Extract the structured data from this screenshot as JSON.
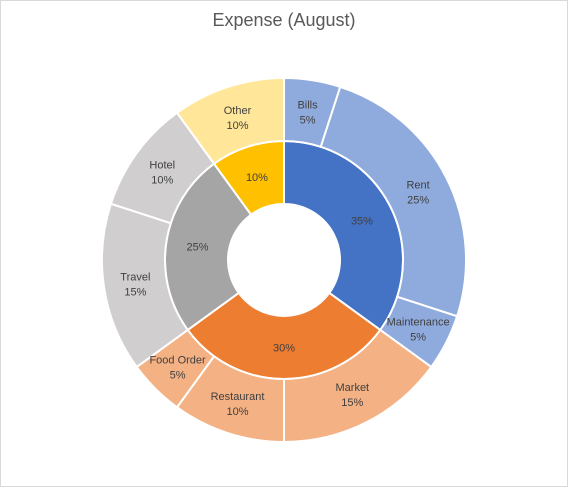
{
  "chart_data": {
    "type": "pie",
    "subtype": "nested-doughnut",
    "title": "Expense (August)",
    "inner_ring": [
      {
        "value": 35,
        "label": "35%",
        "color": "#4472c4"
      },
      {
        "value": 30,
        "label": "30%",
        "color": "#ed7d31"
      },
      {
        "value": 25,
        "label": "25%",
        "color": "#a5a5a5"
      },
      {
        "value": 10,
        "label": "10%",
        "color": "#ffc000"
      }
    ],
    "outer_ring": [
      {
        "name": "Bills",
        "value": 5,
        "label": "5%",
        "color": "#8faadc"
      },
      {
        "name": "Rent",
        "value": 25,
        "label": "25%",
        "color": "#8faadc"
      },
      {
        "name": "Maintenance",
        "value": 5,
        "label": "5%",
        "color": "#8faadc"
      },
      {
        "name": "Market",
        "value": 15,
        "label": "15%",
        "color": "#f4b183"
      },
      {
        "name": "Restaurant",
        "value": 10,
        "label": "10%",
        "color": "#f4b183"
      },
      {
        "name": "Food Order",
        "value": 5,
        "label": "5%",
        "color": "#f4b183"
      },
      {
        "name": "Travel",
        "value": 15,
        "label": "15%",
        "color": "#d0cece"
      },
      {
        "name": "Hotel",
        "value": 10,
        "label": "10%",
        "color": "#d0cece"
      },
      {
        "name": "Other",
        "value": 10,
        "label": "10%",
        "color": "#ffe699"
      }
    ],
    "legend": "none"
  }
}
